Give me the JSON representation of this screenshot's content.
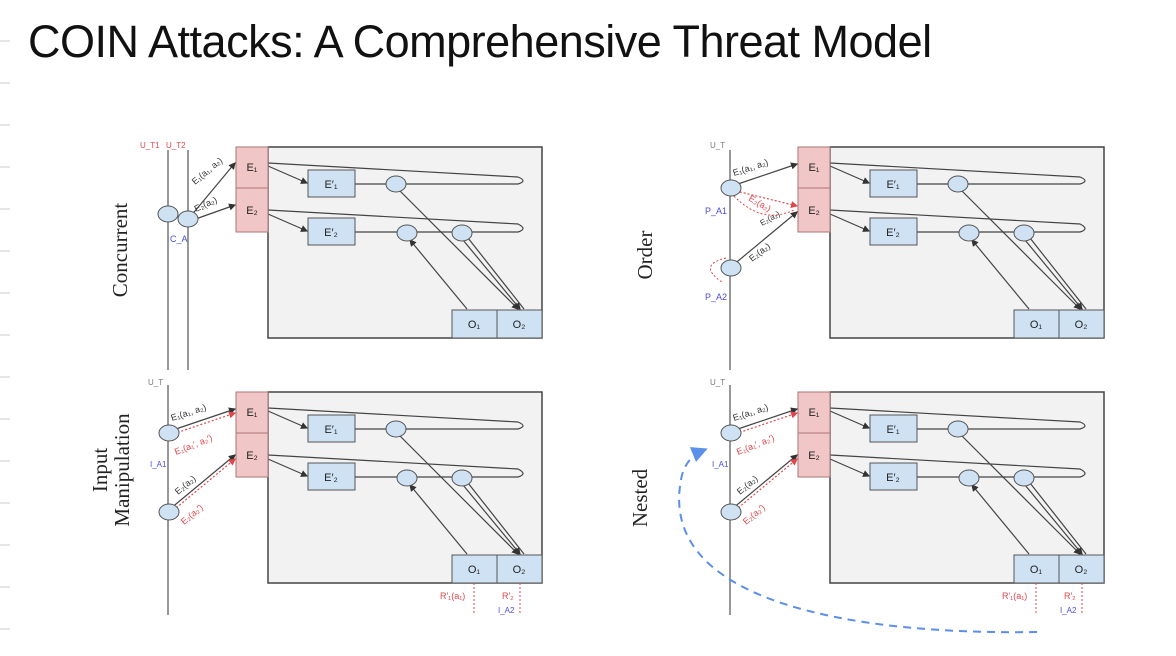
{
  "title": "COIN Attacks: A Comprehensive Threat Model",
  "colors": {
    "attack_red": "#e0474c",
    "attacker_blue": "#4b4bdc",
    "enclave_pink": "#f1c6c6",
    "box_blue": "#cfe2f3",
    "panel_gray": "#f2f2f2",
    "arc_blue": "#5b8fe8"
  },
  "box_labels": {
    "e1": "E₁",
    "e2": "E₂",
    "e1p": "E′₁",
    "e2p": "E′₂",
    "o1": "O₁",
    "o2": "O₂"
  },
  "panels": [
    {
      "label": "Concurrent",
      "user_labels": [
        "U_T1",
        "U_T2"
      ],
      "attacker_labels": [
        "C_A"
      ],
      "call_labels": [
        "E₁(a₁, a₂)",
        "E₂(a₂)"
      ]
    },
    {
      "label": "Order",
      "user_labels": [
        "U_T"
      ],
      "attacker_labels": [
        "P_A1",
        "P_A2"
      ],
      "call_labels": [
        "E₁(a₁, a₂)",
        "E₂(a₂)",
        "E₂(a₂)"
      ],
      "attack_labels": [
        "E₂(a₂)"
      ]
    },
    {
      "label": "Input Manipulation",
      "user_labels": [
        "U_T"
      ],
      "attacker_labels": [
        "I_A1",
        "I_A2"
      ],
      "call_labels": [
        "E₁(a₁, a₂)",
        "E₂(a₂)"
      ],
      "attack_labels": [
        "E₁(a₁′, a₂′)",
        "E₂(a₂′)",
        "R′₁(a₁)",
        "R′₂"
      ]
    },
    {
      "label": "Nested",
      "user_labels": [
        "U_T"
      ],
      "attacker_labels": [
        "I_A1",
        "I_A2"
      ],
      "call_labels": [
        "E₁(a₁, a₂)",
        "E₂(a₂)"
      ],
      "attack_labels": [
        "E₁(a₁′, a₂′)",
        "E₂(a₂′)",
        "R′₁(a₁)",
        "R′₂"
      ]
    }
  ]
}
